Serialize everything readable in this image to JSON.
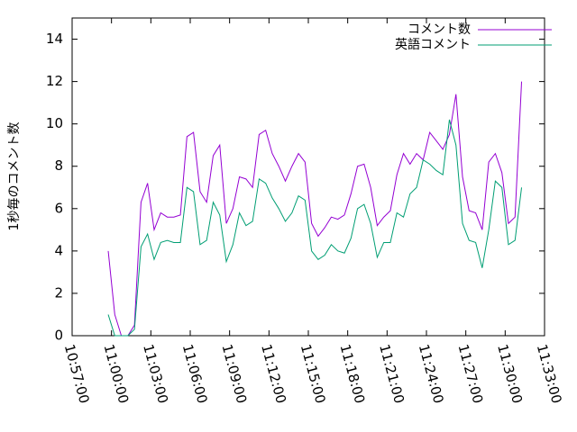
{
  "chart_data": {
    "type": "line",
    "ylabel": "1秒毎のコメント数",
    "x": [
      "10:59:45",
      "11:00:15",
      "11:00:45",
      "11:01:15",
      "11:01:45",
      "11:02:15",
      "11:02:45",
      "11:03:15",
      "11:03:45",
      "11:04:15",
      "11:04:45",
      "11:05:15",
      "11:05:45",
      "11:06:15",
      "11:06:45",
      "11:07:15",
      "11:07:45",
      "11:08:15",
      "11:08:45",
      "11:09:15",
      "11:09:45",
      "11:10:15",
      "11:10:45",
      "11:11:15",
      "11:11:45",
      "11:12:15",
      "11:12:45",
      "11:13:15",
      "11:13:45",
      "11:14:15",
      "11:14:45",
      "11:15:15",
      "11:15:45",
      "11:16:15",
      "11:16:45",
      "11:17:15",
      "11:17:45",
      "11:18:15",
      "11:18:45",
      "11:19:15",
      "11:19:45",
      "11:20:15",
      "11:20:45",
      "11:21:15",
      "11:21:45",
      "11:22:15",
      "11:22:45",
      "11:23:15",
      "11:23:45",
      "11:24:15",
      "11:24:45",
      "11:25:15",
      "11:25:45",
      "11:26:15",
      "11:26:45",
      "11:27:15",
      "11:27:45",
      "11:28:15",
      "11:28:45",
      "11:29:15",
      "11:29:45",
      "11:30:15",
      "11:30:45",
      "11:31:15"
    ],
    "series": [
      {
        "name": "コメント数",
        "color": "#9400d3",
        "values": [
          4.0,
          1.0,
          0,
          0,
          0.5,
          6.3,
          7.2,
          5.0,
          5.8,
          5.6,
          5.6,
          5.7,
          9.4,
          9.6,
          6.8,
          6.3,
          8.5,
          9.0,
          5.3,
          6.0,
          7.5,
          7.4,
          7.0,
          9.5,
          9.7,
          8.6,
          8.0,
          7.3,
          8.0,
          8.6,
          8.2,
          5.3,
          4.7,
          5.1,
          5.6,
          5.5,
          5.7,
          6.7,
          8.0,
          8.1,
          7.0,
          5.2,
          5.6,
          5.9,
          7.6,
          8.6,
          8.1,
          8.6,
          8.3,
          9.6,
          9.2,
          8.8,
          9.5,
          11.4,
          7.5,
          5.9,
          5.8,
          5.0,
          8.2,
          8.6,
          7.7,
          5.3,
          5.6,
          12.0
        ]
      },
      {
        "name": "英語コメント",
        "color": "#009e73",
        "values": [
          1.0,
          0,
          0,
          0,
          0.3,
          4.2,
          4.8,
          3.6,
          4.4,
          4.5,
          4.4,
          4.4,
          7.0,
          6.8,
          4.3,
          4.5,
          6.3,
          5.7,
          3.5,
          4.3,
          5.8,
          5.2,
          5.4,
          7.4,
          7.2,
          6.5,
          6.0,
          5.4,
          5.8,
          6.6,
          6.4,
          4.0,
          3.6,
          3.8,
          4.3,
          4.0,
          3.9,
          4.6,
          6.0,
          6.2,
          5.3,
          3.7,
          4.4,
          4.4,
          5.8,
          5.6,
          6.7,
          7.0,
          8.3,
          8.1,
          7.8,
          7.6,
          10.2,
          9.0,
          5.3,
          4.5,
          4.4,
          3.2,
          5.0,
          7.3,
          7.0,
          4.3,
          4.5,
          7.0
        ]
      }
    ],
    "xlim": [
      "10:57:00",
      "11:33:00"
    ],
    "xticks": [
      "10:57:00",
      "11:00:00",
      "11:03:00",
      "11:06:00",
      "11:09:00",
      "11:12:00",
      "11:15:00",
      "11:18:00",
      "11:21:00",
      "11:24:00",
      "11:27:00",
      "11:30:00",
      "11:33:00"
    ],
    "ylim": [
      0,
      15
    ],
    "yticks": [
      0,
      2,
      4,
      6,
      8,
      10,
      12,
      14
    ],
    "legend": "top-right"
  }
}
